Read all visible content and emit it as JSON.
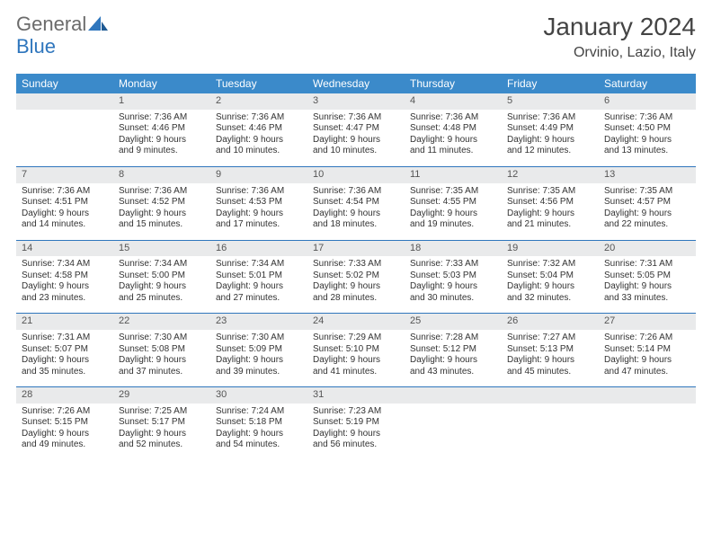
{
  "logo": {
    "general": "General",
    "blue": "Blue"
  },
  "title": "January 2024",
  "location": "Orvinio, Lazio, Italy",
  "colors": {
    "header_bg": "#3b8aca",
    "header_text": "#ffffff",
    "daynum_bg": "#e9eaeb",
    "rule": "#2f76bd",
    "logo_gray": "#6b6b6b",
    "logo_blue": "#2f76bd"
  },
  "weekdays": [
    "Sunday",
    "Monday",
    "Tuesday",
    "Wednesday",
    "Thursday",
    "Friday",
    "Saturday"
  ],
  "weeks": [
    {
      "nums": [
        "",
        "1",
        "2",
        "3",
        "4",
        "5",
        "6"
      ],
      "cells": [
        null,
        {
          "sunrise": "Sunrise: 7:36 AM",
          "sunset": "Sunset: 4:46 PM",
          "day1": "Daylight: 9 hours",
          "day2": "and 9 minutes."
        },
        {
          "sunrise": "Sunrise: 7:36 AM",
          "sunset": "Sunset: 4:46 PM",
          "day1": "Daylight: 9 hours",
          "day2": "and 10 minutes."
        },
        {
          "sunrise": "Sunrise: 7:36 AM",
          "sunset": "Sunset: 4:47 PM",
          "day1": "Daylight: 9 hours",
          "day2": "and 10 minutes."
        },
        {
          "sunrise": "Sunrise: 7:36 AM",
          "sunset": "Sunset: 4:48 PM",
          "day1": "Daylight: 9 hours",
          "day2": "and 11 minutes."
        },
        {
          "sunrise": "Sunrise: 7:36 AM",
          "sunset": "Sunset: 4:49 PM",
          "day1": "Daylight: 9 hours",
          "day2": "and 12 minutes."
        },
        {
          "sunrise": "Sunrise: 7:36 AM",
          "sunset": "Sunset: 4:50 PM",
          "day1": "Daylight: 9 hours",
          "day2": "and 13 minutes."
        }
      ]
    },
    {
      "nums": [
        "7",
        "8",
        "9",
        "10",
        "11",
        "12",
        "13"
      ],
      "cells": [
        {
          "sunrise": "Sunrise: 7:36 AM",
          "sunset": "Sunset: 4:51 PM",
          "day1": "Daylight: 9 hours",
          "day2": "and 14 minutes."
        },
        {
          "sunrise": "Sunrise: 7:36 AM",
          "sunset": "Sunset: 4:52 PM",
          "day1": "Daylight: 9 hours",
          "day2": "and 15 minutes."
        },
        {
          "sunrise": "Sunrise: 7:36 AM",
          "sunset": "Sunset: 4:53 PM",
          "day1": "Daylight: 9 hours",
          "day2": "and 17 minutes."
        },
        {
          "sunrise": "Sunrise: 7:36 AM",
          "sunset": "Sunset: 4:54 PM",
          "day1": "Daylight: 9 hours",
          "day2": "and 18 minutes."
        },
        {
          "sunrise": "Sunrise: 7:35 AM",
          "sunset": "Sunset: 4:55 PM",
          "day1": "Daylight: 9 hours",
          "day2": "and 19 minutes."
        },
        {
          "sunrise": "Sunrise: 7:35 AM",
          "sunset": "Sunset: 4:56 PM",
          "day1": "Daylight: 9 hours",
          "day2": "and 21 minutes."
        },
        {
          "sunrise": "Sunrise: 7:35 AM",
          "sunset": "Sunset: 4:57 PM",
          "day1": "Daylight: 9 hours",
          "day2": "and 22 minutes."
        }
      ]
    },
    {
      "nums": [
        "14",
        "15",
        "16",
        "17",
        "18",
        "19",
        "20"
      ],
      "cells": [
        {
          "sunrise": "Sunrise: 7:34 AM",
          "sunset": "Sunset: 4:58 PM",
          "day1": "Daylight: 9 hours",
          "day2": "and 23 minutes."
        },
        {
          "sunrise": "Sunrise: 7:34 AM",
          "sunset": "Sunset: 5:00 PM",
          "day1": "Daylight: 9 hours",
          "day2": "and 25 minutes."
        },
        {
          "sunrise": "Sunrise: 7:34 AM",
          "sunset": "Sunset: 5:01 PM",
          "day1": "Daylight: 9 hours",
          "day2": "and 27 minutes."
        },
        {
          "sunrise": "Sunrise: 7:33 AM",
          "sunset": "Sunset: 5:02 PM",
          "day1": "Daylight: 9 hours",
          "day2": "and 28 minutes."
        },
        {
          "sunrise": "Sunrise: 7:33 AM",
          "sunset": "Sunset: 5:03 PM",
          "day1": "Daylight: 9 hours",
          "day2": "and 30 minutes."
        },
        {
          "sunrise": "Sunrise: 7:32 AM",
          "sunset": "Sunset: 5:04 PM",
          "day1": "Daylight: 9 hours",
          "day2": "and 32 minutes."
        },
        {
          "sunrise": "Sunrise: 7:31 AM",
          "sunset": "Sunset: 5:05 PM",
          "day1": "Daylight: 9 hours",
          "day2": "and 33 minutes."
        }
      ]
    },
    {
      "nums": [
        "21",
        "22",
        "23",
        "24",
        "25",
        "26",
        "27"
      ],
      "cells": [
        {
          "sunrise": "Sunrise: 7:31 AM",
          "sunset": "Sunset: 5:07 PM",
          "day1": "Daylight: 9 hours",
          "day2": "and 35 minutes."
        },
        {
          "sunrise": "Sunrise: 7:30 AM",
          "sunset": "Sunset: 5:08 PM",
          "day1": "Daylight: 9 hours",
          "day2": "and 37 minutes."
        },
        {
          "sunrise": "Sunrise: 7:30 AM",
          "sunset": "Sunset: 5:09 PM",
          "day1": "Daylight: 9 hours",
          "day2": "and 39 minutes."
        },
        {
          "sunrise": "Sunrise: 7:29 AM",
          "sunset": "Sunset: 5:10 PM",
          "day1": "Daylight: 9 hours",
          "day2": "and 41 minutes."
        },
        {
          "sunrise": "Sunrise: 7:28 AM",
          "sunset": "Sunset: 5:12 PM",
          "day1": "Daylight: 9 hours",
          "day2": "and 43 minutes."
        },
        {
          "sunrise": "Sunrise: 7:27 AM",
          "sunset": "Sunset: 5:13 PM",
          "day1": "Daylight: 9 hours",
          "day2": "and 45 minutes."
        },
        {
          "sunrise": "Sunrise: 7:26 AM",
          "sunset": "Sunset: 5:14 PM",
          "day1": "Daylight: 9 hours",
          "day2": "and 47 minutes."
        }
      ]
    },
    {
      "nums": [
        "28",
        "29",
        "30",
        "31",
        "",
        "",
        ""
      ],
      "cells": [
        {
          "sunrise": "Sunrise: 7:26 AM",
          "sunset": "Sunset: 5:15 PM",
          "day1": "Daylight: 9 hours",
          "day2": "and 49 minutes."
        },
        {
          "sunrise": "Sunrise: 7:25 AM",
          "sunset": "Sunset: 5:17 PM",
          "day1": "Daylight: 9 hours",
          "day2": "and 52 minutes."
        },
        {
          "sunrise": "Sunrise: 7:24 AM",
          "sunset": "Sunset: 5:18 PM",
          "day1": "Daylight: 9 hours",
          "day2": "and 54 minutes."
        },
        {
          "sunrise": "Sunrise: 7:23 AM",
          "sunset": "Sunset: 5:19 PM",
          "day1": "Daylight: 9 hours",
          "day2": "and 56 minutes."
        },
        null,
        null,
        null
      ]
    }
  ]
}
